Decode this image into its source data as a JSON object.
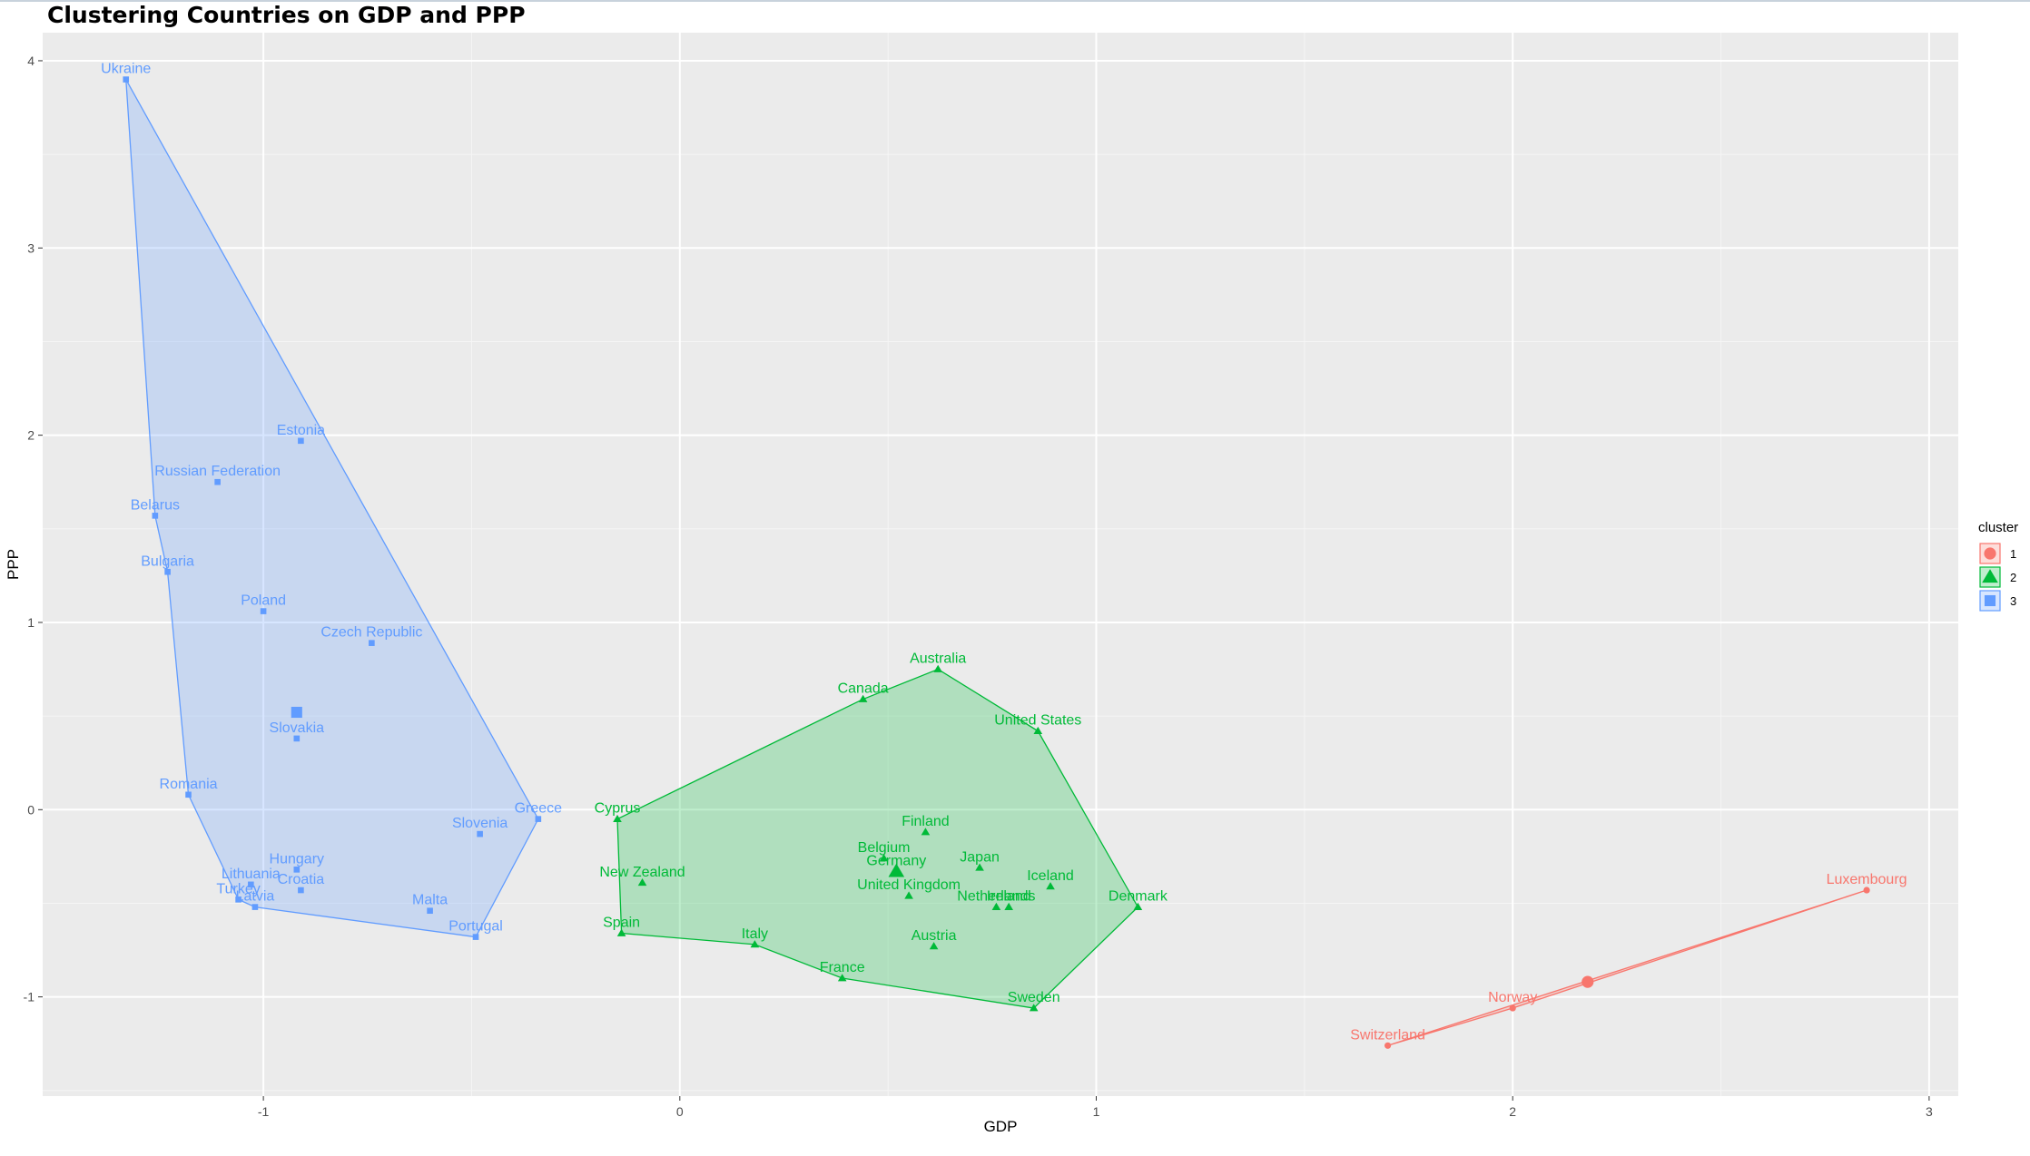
{
  "chart_data": {
    "type": "scatter",
    "title": "Clustering Countries on GDP and PPP",
    "xlabel": "GDP",
    "ylabel": "PPP",
    "xlim": [
      -1.53,
      3.07
    ],
    "ylim": [
      -1.53,
      4.15
    ],
    "xticks": [
      -1,
      0,
      1,
      2,
      3
    ],
    "yticks": [
      -1,
      0,
      1,
      2,
      3,
      4
    ],
    "grid": true,
    "legend": {
      "title": "cluster",
      "position": "right"
    },
    "colors": {
      "1": "#F8766D",
      "2": "#00BA38",
      "3": "#619CFF"
    },
    "series": [
      {
        "name": "1",
        "shape": "circle",
        "points": [
          {
            "label": "Luxembourg",
            "x": 2.85,
            "y": -0.43
          },
          {
            "label": "Norway",
            "x": 2.0,
            "y": -1.06
          },
          {
            "label": "Switzerland",
            "x": 1.7,
            "y": -1.26
          }
        ],
        "centroid": {
          "x": 2.18,
          "y": -0.92
        },
        "hull": [
          "Luxembourg",
          "Norway",
          "Switzerland"
        ]
      },
      {
        "name": "2",
        "shape": "triangle",
        "points": [
          {
            "label": "Australia",
            "x": 0.62,
            "y": 0.75
          },
          {
            "label": "Canada",
            "x": 0.44,
            "y": 0.59
          },
          {
            "label": "United States",
            "x": 0.86,
            "y": 0.42
          },
          {
            "label": "Cyprus",
            "x": -0.15,
            "y": -0.05
          },
          {
            "label": "Finland",
            "x": 0.59,
            "y": -0.12
          },
          {
            "label": "Belgium",
            "x": 0.49,
            "y": -0.26
          },
          {
            "label": "Japan",
            "x": 0.72,
            "y": -0.31
          },
          {
            "label": "Germany",
            "x": 0.52,
            "y": -0.33
          },
          {
            "label": "Iceland",
            "x": 0.89,
            "y": -0.41
          },
          {
            "label": "United Kingdom",
            "x": 0.55,
            "y": -0.46
          },
          {
            "label": "New Zealand",
            "x": -0.09,
            "y": -0.39
          },
          {
            "label": "Netherlands",
            "x": 0.76,
            "y": -0.52
          },
          {
            "label": "Ireland",
            "x": 0.79,
            "y": -0.52
          },
          {
            "label": "Denmark",
            "x": 1.1,
            "y": -0.52
          },
          {
            "label": "Spain",
            "x": -0.14,
            "y": -0.66
          },
          {
            "label": "Italy",
            "x": 0.18,
            "y": -0.72
          },
          {
            "label": "Austria",
            "x": 0.61,
            "y": -0.73
          },
          {
            "label": "France",
            "x": 0.39,
            "y": -0.9
          },
          {
            "label": "Sweden",
            "x": 0.85,
            "y": -1.06
          }
        ],
        "centroid": {
          "x": 0.52,
          "y": -0.33
        },
        "hull": [
          "Australia",
          "United States",
          "Denmark",
          "Sweden",
          "France",
          "Italy",
          "Spain",
          "Cyprus",
          "Canada"
        ]
      },
      {
        "name": "3",
        "shape": "square",
        "points": [
          {
            "label": "Ukraine",
            "x": -1.33,
            "y": 3.9
          },
          {
            "label": "Estonia",
            "x": -0.91,
            "y": 1.97
          },
          {
            "label": "Russian Federation",
            "x": -1.11,
            "y": 1.75
          },
          {
            "label": "Belarus",
            "x": -1.26,
            "y": 1.57
          },
          {
            "label": "Bulgaria",
            "x": -1.23,
            "y": 1.27
          },
          {
            "label": "Poland",
            "x": -1.0,
            "y": 1.06
          },
          {
            "label": "Czech Republic",
            "x": -0.74,
            "y": 0.89
          },
          {
            "label": "Slovakia",
            "x": -0.92,
            "y": 0.38
          },
          {
            "label": "Romania",
            "x": -1.18,
            "y": 0.08
          },
          {
            "label": "Greece",
            "x": -0.34,
            "y": -0.05
          },
          {
            "label": "Slovenia",
            "x": -0.48,
            "y": -0.13
          },
          {
            "label": "Hungary",
            "x": -0.92,
            "y": -0.32
          },
          {
            "label": "Lithuania",
            "x": -1.03,
            "y": -0.4
          },
          {
            "label": "Croatia",
            "x": -0.91,
            "y": -0.43
          },
          {
            "label": "Turkey",
            "x": -1.06,
            "y": -0.48
          },
          {
            "label": "Latvia",
            "x": -1.02,
            "y": -0.52
          },
          {
            "label": "Malta",
            "x": -0.6,
            "y": -0.54
          },
          {
            "label": "Portugal",
            "x": -0.49,
            "y": -0.68
          }
        ],
        "centroid": {
          "x": -0.92,
          "y": 0.52
        },
        "hull": [
          "Ukraine",
          "Greece",
          "Portugal",
          "Latvia",
          "Turkey",
          "Romania",
          "Bulgaria",
          "Belarus"
        ]
      }
    ]
  }
}
